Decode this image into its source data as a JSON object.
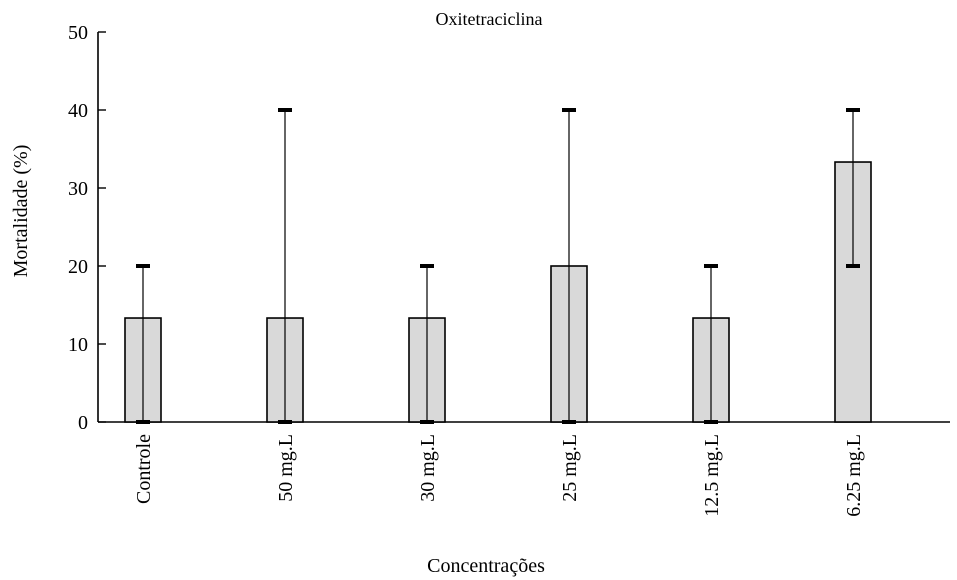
{
  "chart_data": {
    "type": "bar",
    "title": "Oxitetraciclina",
    "xlabel": "Concentrações",
    "ylabel": "Mortalidade (%)",
    "ylim": [
      0,
      50
    ],
    "yticks": [
      0,
      10,
      20,
      30,
      40,
      50
    ],
    "categories": [
      "Controle",
      "50 mg.L",
      "30 mg.L",
      "25 mg.L",
      "12.5 mg.L",
      "6.25 mg.L"
    ],
    "values": [
      13.33,
      13.33,
      13.33,
      20,
      13.33,
      33.33
    ],
    "error_low": [
      0,
      0,
      0,
      0,
      0,
      20
    ],
    "error_high": [
      20,
      40,
      20,
      40,
      20,
      40
    ],
    "grid": false,
    "bar_color": "#d9d9d9"
  }
}
